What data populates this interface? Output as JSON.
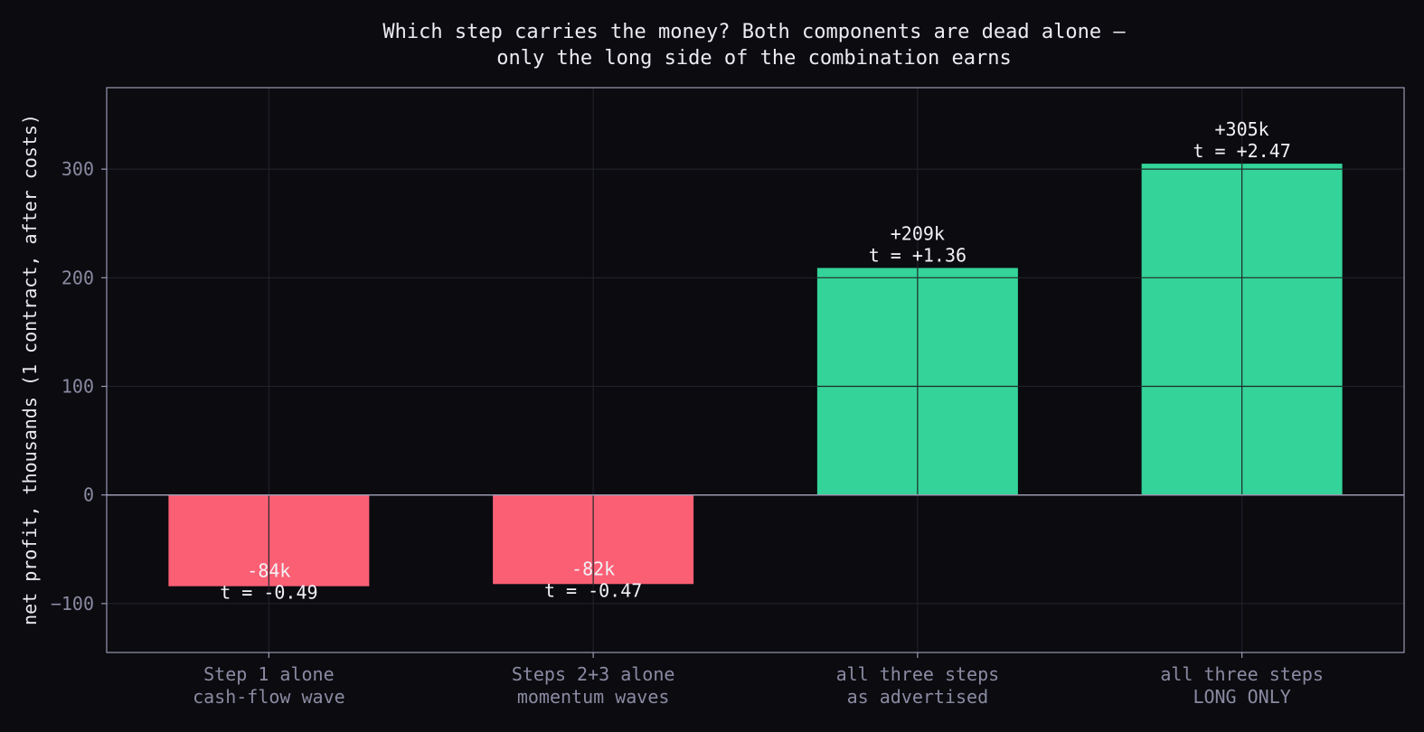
{
  "chart_data": {
    "type": "bar",
    "title_lines": [
      "Which step carries the money? Both components are dead alone —",
      "only the long side of the combination earns"
    ],
    "xlabel": "",
    "ylabel": "net profit, thousands (1 contract, after costs)",
    "ylim": [
      -145,
      375
    ],
    "yticks": [
      -100,
      0,
      100,
      200,
      300
    ],
    "ytick_labels": [
      "−100",
      "0",
      "100",
      "200",
      "300"
    ],
    "grid": true,
    "categories": [
      [
        "Step 1 alone",
        "cash-flow wave"
      ],
      [
        "Steps 2+3 alone",
        "momentum waves"
      ],
      [
        "all three steps",
        "as advertised"
      ],
      [
        "all three steps",
        "LONG ONLY"
      ]
    ],
    "values": [
      -84,
      -82,
      209,
      305
    ],
    "bar_labels": [
      [
        "-84k",
        "t = -0.49"
      ],
      [
        "-82k",
        "t = -0.47"
      ],
      [
        "+209k",
        "t = +1.36"
      ],
      [
        "+305k",
        "t = +2.47"
      ]
    ],
    "colors": {
      "positive": "#34d399",
      "negative": "#fb5f74",
      "background": "#0b0b10",
      "axes": "#9a9ab2",
      "grid": "#23232e",
      "text": "#ecebf2",
      "tick_text": "#8a8aa2"
    }
  }
}
